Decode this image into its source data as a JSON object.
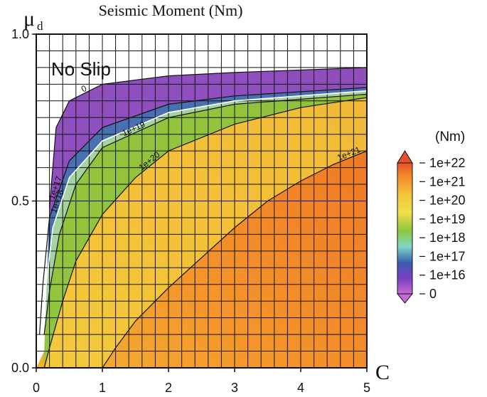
{
  "chart_data": {
    "type": "heatmap",
    "title": "Seismic Moment (Nm)",
    "xlabel": "C",
    "ylabel": "μ",
    "ylabel_subscript": "d",
    "xlim": [
      0,
      5
    ],
    "ylim": [
      0,
      1
    ],
    "x_ticks": [
      "0",
      "1",
      "2",
      "3",
      "4",
      "5"
    ],
    "y_ticks": [
      "0.0",
      "0.5",
      "1.0"
    ],
    "grid": true,
    "region_label": "No Slip",
    "colorbar": {
      "unit_label": "(Nm)",
      "tick_labels": [
        "1e+22",
        "1e+21",
        "1e+20",
        "1e+19",
        "1e+18",
        "1e+17",
        "1e+16",
        "0"
      ],
      "colors": [
        "#e8502a",
        "#f48a28",
        "#f2c33a",
        "#8cc63e",
        "#7fd6c8",
        "#3a5fb0",
        "#8a3fc0",
        "#c46bd8"
      ]
    },
    "contours": [
      {
        "label": "0",
        "points": [
          [
            0.2,
            0.48
          ],
          [
            0.3,
            0.72
          ],
          [
            0.5,
            0.8
          ],
          [
            1.0,
            0.85
          ],
          [
            2.0,
            0.875
          ],
          [
            3.0,
            0.885
          ],
          [
            5.0,
            0.9
          ]
        ]
      },
      {
        "label": "1e+17",
        "points": [
          [
            0.05,
            0.1
          ],
          [
            0.1,
            0.25
          ],
          [
            0.2,
            0.45
          ],
          [
            0.5,
            0.62
          ],
          [
            1.0,
            0.72
          ],
          [
            2.0,
            0.79
          ],
          [
            3.0,
            0.815
          ],
          [
            5.0,
            0.84
          ]
        ]
      },
      {
        "label": "1e+18",
        "points": [
          [
            0.08,
            0.1
          ],
          [
            0.15,
            0.25
          ],
          [
            0.25,
            0.42
          ],
          [
            0.5,
            0.57
          ],
          [
            1.0,
            0.68
          ],
          [
            2.0,
            0.765
          ],
          [
            3.0,
            0.8
          ],
          [
            5.0,
            0.83
          ]
        ]
      },
      {
        "label": "1e+19",
        "points": [
          [
            0.12,
            0.1
          ],
          [
            0.2,
            0.23
          ],
          [
            0.35,
            0.4
          ],
          [
            0.6,
            0.55
          ],
          [
            1.0,
            0.66
          ],
          [
            2.0,
            0.75
          ],
          [
            3.0,
            0.79
          ],
          [
            5.0,
            0.82
          ]
        ]
      },
      {
        "label": "1e+20",
        "points": [
          [
            0.12,
            0.0
          ],
          [
            0.2,
            0.06
          ],
          [
            0.4,
            0.2
          ],
          [
            0.6,
            0.32
          ],
          [
            1.0,
            0.46
          ],
          [
            1.5,
            0.57
          ],
          [
            2.0,
            0.65
          ],
          [
            3.0,
            0.73
          ],
          [
            4.0,
            0.78
          ],
          [
            5.0,
            0.81
          ]
        ]
      },
      {
        "label": "1e+21",
        "points": [
          [
            1.0,
            0.0
          ],
          [
            1.2,
            0.06
          ],
          [
            1.5,
            0.14
          ],
          [
            2.0,
            0.24
          ],
          [
            2.5,
            0.33
          ],
          [
            3.0,
            0.42
          ],
          [
            3.5,
            0.5
          ],
          [
            4.0,
            0.56
          ],
          [
            4.5,
            0.61
          ],
          [
            5.0,
            0.65
          ]
        ]
      }
    ]
  }
}
